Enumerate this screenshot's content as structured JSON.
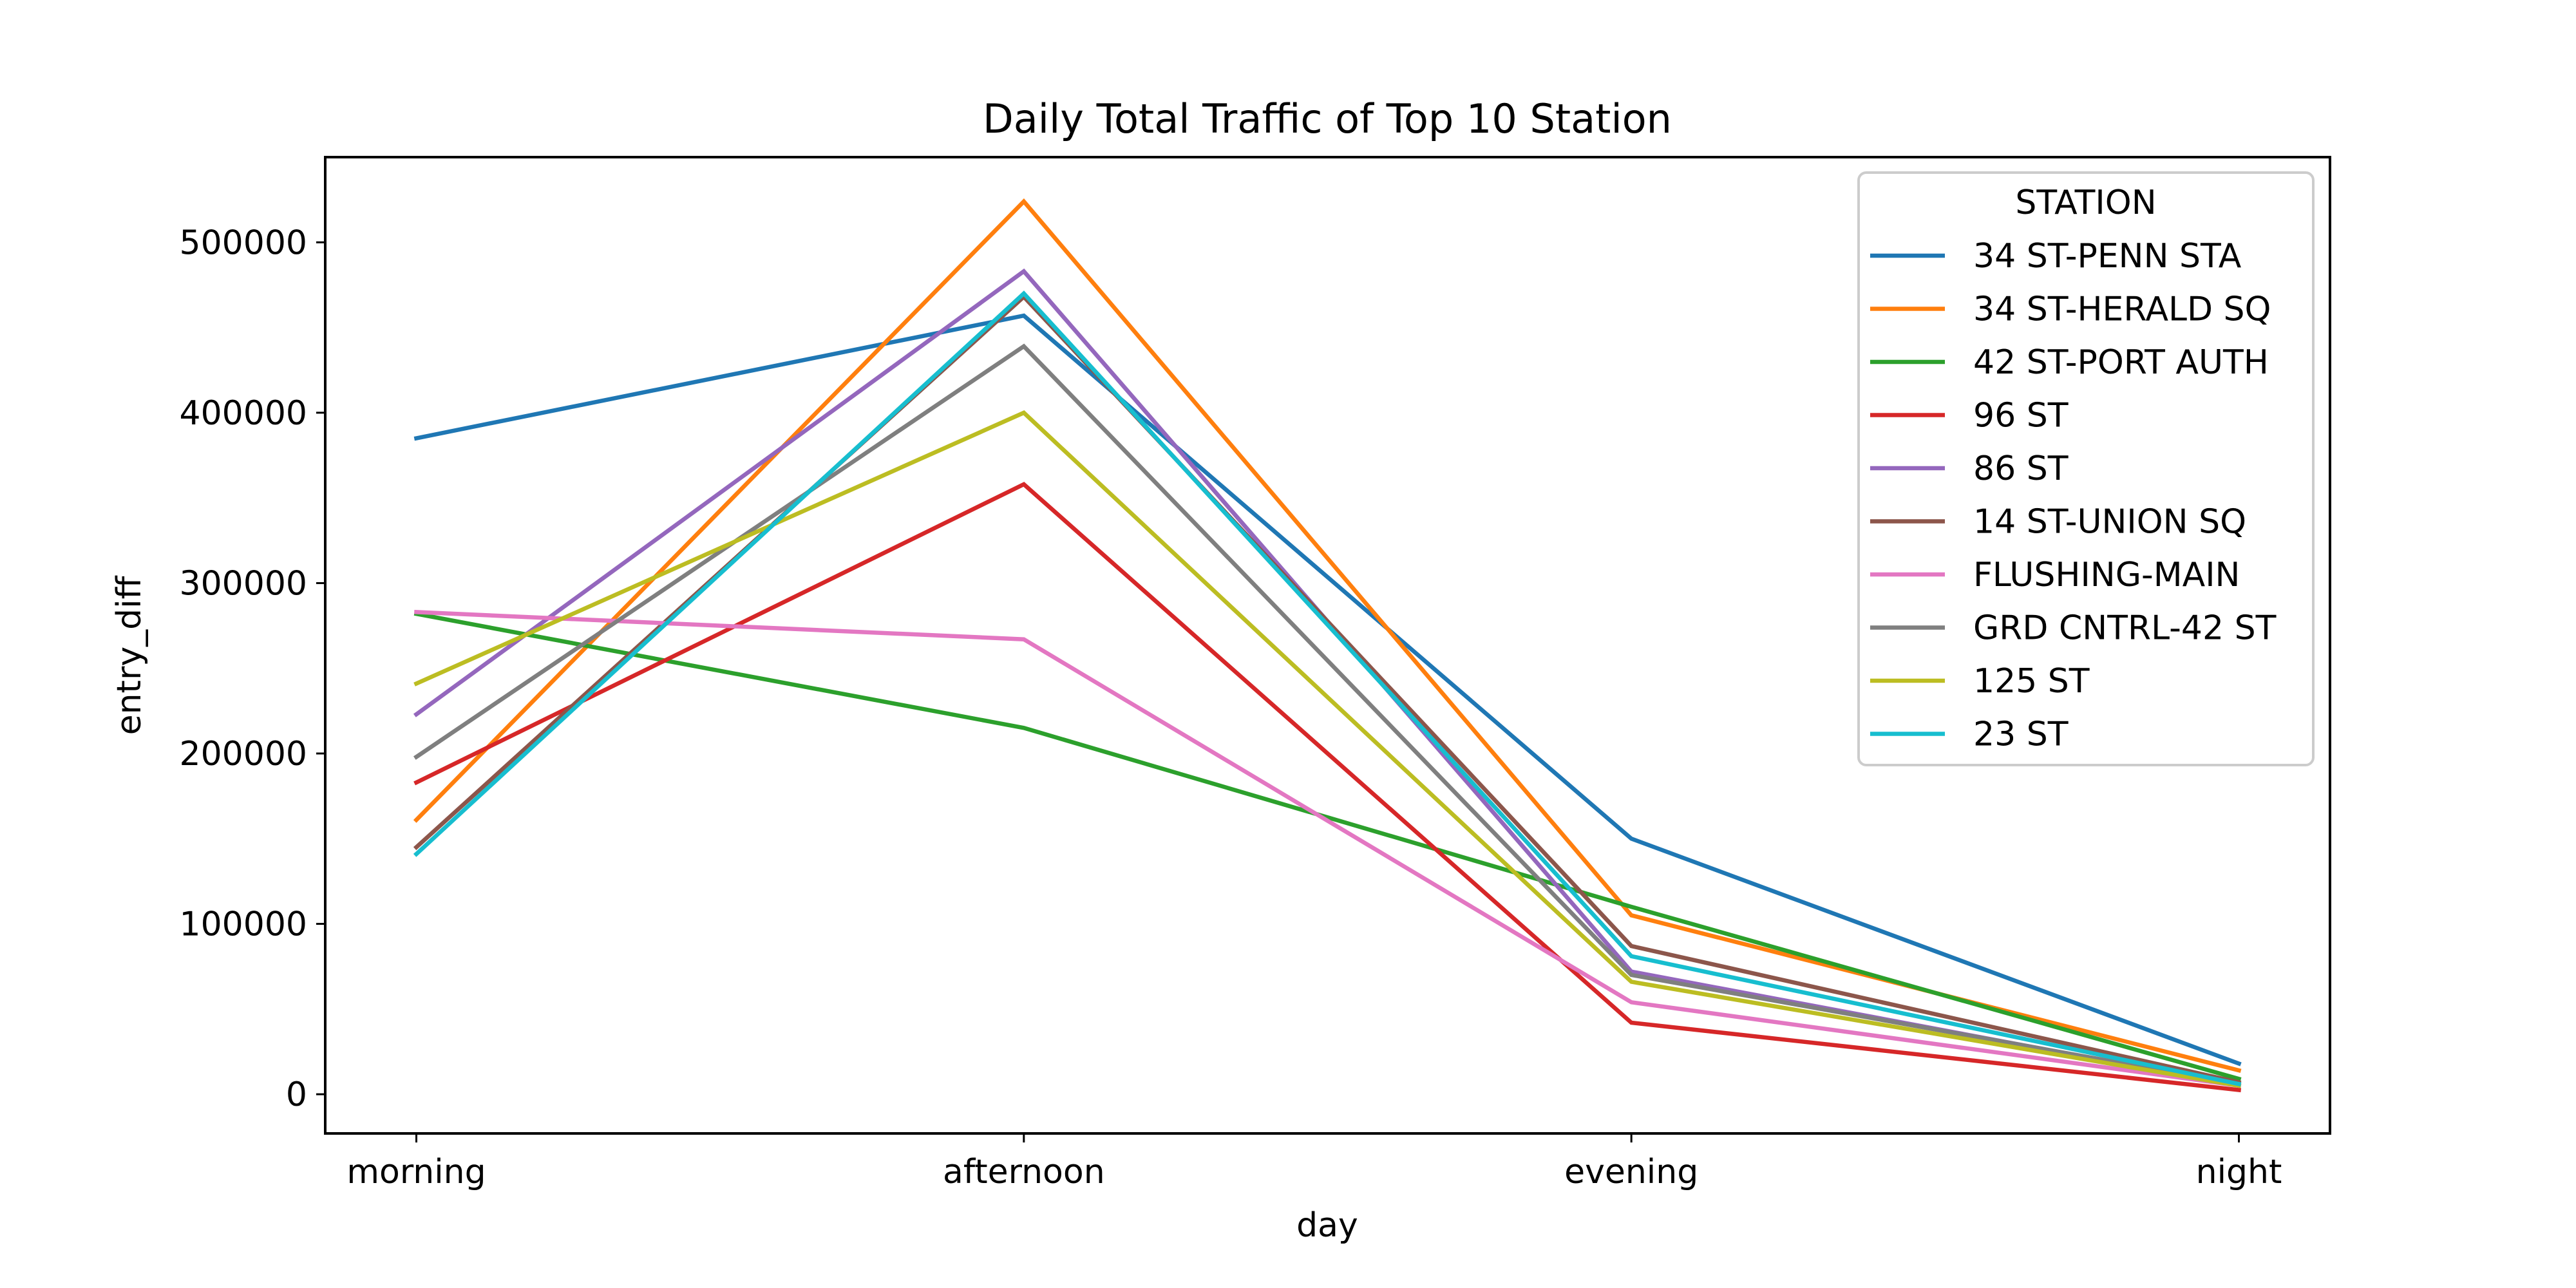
{
  "chart_data": {
    "type": "line",
    "title": "Daily Total Traffic of Top 10 Station",
    "xlabel": "day",
    "ylabel": "entry_diff",
    "categories": [
      "morning",
      "afternoon",
      "evening",
      "night"
    ],
    "ylim": [
      -23000,
      550000
    ],
    "yticks": [
      0,
      100000,
      200000,
      300000,
      400000,
      500000
    ],
    "ytick_labels": [
      "0",
      "100000",
      "200000",
      "300000",
      "400000",
      "500000"
    ],
    "grid": false,
    "legend": {
      "title": "STATION",
      "placement": "top-right"
    },
    "series": [
      {
        "name": "34 ST-PENN STA",
        "color": "#1f77b4",
        "values": [
          385000,
          457000,
          150000,
          18000
        ]
      },
      {
        "name": "34 ST-HERALD SQ",
        "color": "#ff7f0e",
        "values": [
          161000,
          524000,
          105000,
          14000
        ]
      },
      {
        "name": "42 ST-PORT AUTH",
        "color": "#2ca02c",
        "values": [
          282000,
          215000,
          110000,
          9000
        ]
      },
      {
        "name": "96 ST",
        "color": "#d62728",
        "values": [
          183000,
          358000,
          42000,
          2500
        ]
      },
      {
        "name": "86 ST",
        "color": "#9467bd",
        "values": [
          223000,
          483000,
          72000,
          5000
        ]
      },
      {
        "name": "14 ST-UNION SQ",
        "color": "#8c564b",
        "values": [
          145000,
          468000,
          87000,
          7000
        ]
      },
      {
        "name": "FLUSHING-MAIN",
        "color": "#e377c2",
        "values": [
          283000,
          267000,
          54000,
          5000
        ]
      },
      {
        "name": "GRD CNTRL-42 ST",
        "color": "#7f7f7f",
        "values": [
          198000,
          439000,
          70000,
          6000
        ]
      },
      {
        "name": "125 ST",
        "color": "#bcbd22",
        "values": [
          241000,
          400000,
          66000,
          5000
        ]
      },
      {
        "name": "23 ST",
        "color": "#17becf",
        "values": [
          141000,
          470000,
          81000,
          6000
        ]
      }
    ]
  }
}
